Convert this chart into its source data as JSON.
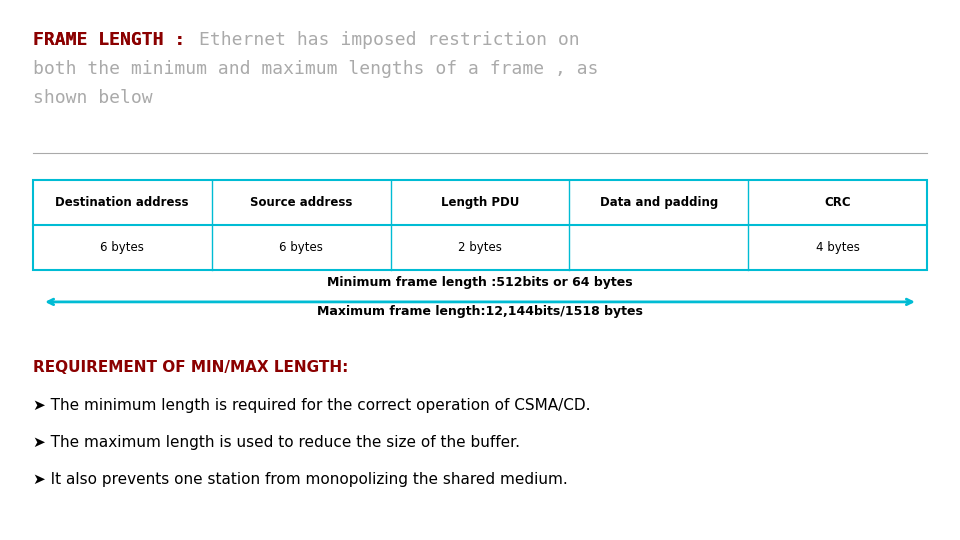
{
  "background_color": "#ffffff",
  "title_bold": "FRAME LENGTH :",
  "title_regular": " Ethernet has imposed restriction on\nboth the minimum and maximum lengths of a frame , as\nshown below",
  "title_bold_color": "#8B0000",
  "title_regular_color": "#aaaaaa",
  "title_fontsize": 13,
  "table_headers": [
    "Destination address",
    "Source address",
    "Length PDU",
    "Data and padding",
    "CRC"
  ],
  "table_values": [
    "6 bytes",
    "6 bytes",
    "2 bytes",
    "",
    "4 bytes"
  ],
  "table_header_bg": "#ffffff",
  "table_border_color": "#00bcd4",
  "table_text_color": "#000000",
  "arrow_color": "#00bcd4",
  "arrow_label1": "Minimum frame length :512bits or 64 bytes",
  "arrow_label2": "Maximum frame length:12,144bits/1518 bytes",
  "arrow_label_color": "#000000",
  "arrow_label_fontsize": 9,
  "req_title": "REQUIREMENT OF MIN/MAX LENGTH:",
  "req_title_color": "#8B0000",
  "req_title_fontsize": 11,
  "req_bullets": [
    "✔ The minimum length is required for the correct operation of CSMA/CD.",
    "✔ The maximum length is used to reduce the size of the buffer.",
    "✔ It also prevents one station from monopolizing the shared medium."
  ],
  "req_bullet_color": "#000000",
  "req_bullet_fontsize": 11,
  "separator_color": "#aaaaaa"
}
